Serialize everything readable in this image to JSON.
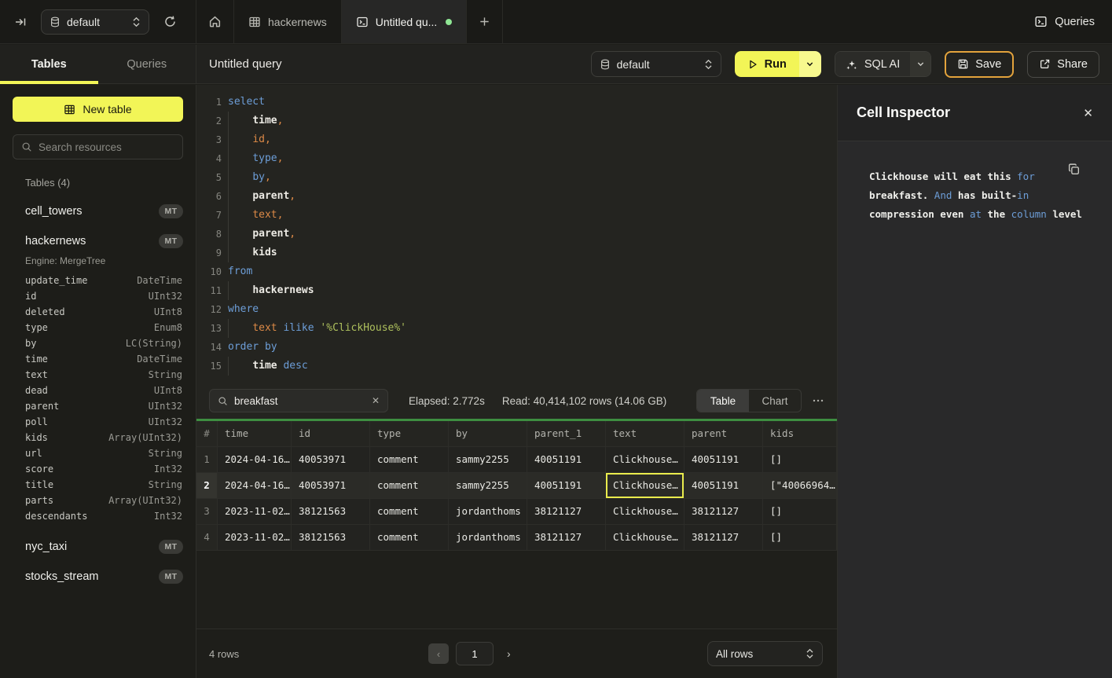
{
  "topbar": {
    "database_select": "default",
    "tabs": [
      {
        "label": "hackernews",
        "icon": "table"
      },
      {
        "label": "Untitled qu...",
        "icon": "terminal",
        "active": true
      }
    ],
    "queries_button": "Queries",
    "accent_yellow": "#f2f557",
    "dirty_dot_color": "#8fe694"
  },
  "sidebar": {
    "tabs": [
      {
        "label": "Tables",
        "active": true
      },
      {
        "label": "Queries",
        "active": false
      }
    ],
    "new_table_button": "New table",
    "search_placeholder": "Search resources",
    "section_label": "Tables (4)",
    "tables": [
      {
        "name": "cell_towers",
        "badge": "MT"
      },
      {
        "name": "hackernews",
        "badge": "MT"
      },
      {
        "name": "nyc_taxi",
        "badge": "MT"
      },
      {
        "name": "stocks_stream",
        "badge": "MT"
      }
    ],
    "expanded_table_engine": "Engine: MergeTree",
    "expanded_table_columns": [
      [
        "update_time",
        "DateTime"
      ],
      [
        "id",
        "UInt32"
      ],
      [
        "deleted",
        "UInt8"
      ],
      [
        "type",
        "Enum8"
      ],
      [
        "by",
        "LC(String)"
      ],
      [
        "time",
        "DateTime"
      ],
      [
        "text",
        "String"
      ],
      [
        "dead",
        "UInt8"
      ],
      [
        "parent",
        "UInt32"
      ],
      [
        "poll",
        "UInt32"
      ],
      [
        "kids",
        "Array(UInt32)"
      ],
      [
        "url",
        "String"
      ],
      [
        "score",
        "Int32"
      ],
      [
        "title",
        "String"
      ],
      [
        "parts",
        "Array(UInt32)"
      ],
      [
        "descendants",
        "Int32"
      ]
    ]
  },
  "toolbar": {
    "title": "Untitled query",
    "database_select": "default",
    "run_label": "Run",
    "sql_ai_label": "SQL AI",
    "save_label": "Save",
    "share_label": "Share",
    "save_border_color": "#e3a33c"
  },
  "editor": {
    "lines": [
      {
        "n": "1",
        "guide": false,
        "tokens": [
          [
            "select",
            "kw"
          ]
        ]
      },
      {
        "n": "2",
        "guide": true,
        "tokens": [
          [
            "    ",
            "pl"
          ],
          [
            "time",
            "id"
          ],
          [
            ",",
            "or"
          ]
        ]
      },
      {
        "n": "3",
        "guide": true,
        "tokens": [
          [
            "    ",
            "pl"
          ],
          [
            "id",
            "or"
          ],
          [
            ",",
            "or"
          ]
        ]
      },
      {
        "n": "4",
        "guide": true,
        "tokens": [
          [
            "    ",
            "pl"
          ],
          [
            "type",
            "kw"
          ],
          [
            ",",
            "or"
          ]
        ]
      },
      {
        "n": "5",
        "guide": true,
        "tokens": [
          [
            "    ",
            "pl"
          ],
          [
            "by",
            "kw"
          ],
          [
            ",",
            "or"
          ]
        ]
      },
      {
        "n": "6",
        "guide": true,
        "tokens": [
          [
            "    ",
            "pl"
          ],
          [
            "parent",
            "id"
          ],
          [
            ",",
            "or"
          ]
        ]
      },
      {
        "n": "7",
        "guide": true,
        "tokens": [
          [
            "    ",
            "pl"
          ],
          [
            "text",
            "or"
          ],
          [
            ",",
            "or"
          ]
        ]
      },
      {
        "n": "8",
        "guide": true,
        "tokens": [
          [
            "    ",
            "pl"
          ],
          [
            "parent",
            "id"
          ],
          [
            ",",
            "or"
          ]
        ]
      },
      {
        "n": "9",
        "guide": true,
        "tokens": [
          [
            "    ",
            "pl"
          ],
          [
            "kids",
            "id"
          ]
        ]
      },
      {
        "n": "10",
        "guide": false,
        "tokens": [
          [
            "from",
            "kw"
          ]
        ]
      },
      {
        "n": "11",
        "guide": true,
        "tokens": [
          [
            "    ",
            "pl"
          ],
          [
            "hackernews",
            "id"
          ]
        ]
      },
      {
        "n": "12",
        "guide": false,
        "tokens": [
          [
            "where",
            "kw"
          ]
        ]
      },
      {
        "n": "13",
        "guide": true,
        "tokens": [
          [
            "    ",
            "pl"
          ],
          [
            "text",
            "or"
          ],
          [
            " ",
            "pl"
          ],
          [
            "ilike",
            "kw"
          ],
          [
            " ",
            "pl"
          ],
          [
            "'%ClickHouse%'",
            "st"
          ]
        ]
      },
      {
        "n": "14",
        "guide": false,
        "tokens": [
          [
            "order by",
            "kw"
          ]
        ]
      },
      {
        "n": "15",
        "guide": true,
        "tokens": [
          [
            "    ",
            "pl"
          ],
          [
            "time",
            "id"
          ],
          [
            " ",
            "pl"
          ],
          [
            "desc",
            "kw"
          ]
        ]
      }
    ]
  },
  "results": {
    "search_value": "breakfast",
    "elapsed": "Elapsed: 2.772s",
    "read": "Read: 40,414,102 rows (14.06 GB)",
    "view_toggle": [
      {
        "label": "Table",
        "active": true
      },
      {
        "label": "Chart",
        "active": false
      }
    ],
    "more_label": "...",
    "table": {
      "columns": [
        "#",
        "time",
        "id",
        "type",
        "by",
        "parent_1",
        "text",
        "parent",
        "kids"
      ],
      "rows": [
        [
          "2024-04-16…",
          "40053971",
          "comment",
          "sammy2255",
          "40051191",
          "Clickhouse…",
          "40051191",
          "[]"
        ],
        [
          "2024-04-16…",
          "40053971",
          "comment",
          "sammy2255",
          "40051191",
          "Clickhouse…",
          "40051191",
          "[\"40066964…"
        ],
        [
          "2023-11-02…",
          "38121563",
          "comment",
          "jordanthoms",
          "38121127",
          "Clickhouse…",
          "38121127",
          "[]"
        ],
        [
          "2023-11-02…",
          "38121563",
          "comment",
          "jordanthoms",
          "38121127",
          "Clickhouse…",
          "38121127",
          "[]"
        ]
      ],
      "selected_cell": {
        "row": 1,
        "col": 5
      },
      "highlighted_row": 1,
      "header_accent_color": "#3e8e41",
      "selection_color": "#eaec4d"
    },
    "footer": {
      "rows_label": "4 rows",
      "page": "1",
      "prev": "‹",
      "next": "›",
      "page_size": "All rows"
    }
  },
  "inspector": {
    "title": "Cell Inspector",
    "close_label": "✕",
    "lines": [
      [
        [
          "Clickhouse will eat this ",
          "t"
        ],
        [
          "for",
          "k"
        ]
      ],
      [
        [
          "breakfast. ",
          "t"
        ],
        [
          "And",
          "k"
        ],
        [
          " has built-",
          "t"
        ],
        [
          "in",
          "k"
        ]
      ],
      [
        [
          "compression even ",
          "t"
        ],
        [
          "at",
          "k"
        ],
        [
          " the ",
          "t"
        ],
        [
          "column",
          "k"
        ],
        [
          " level",
          "t"
        ]
      ]
    ],
    "keyword_color": "#6d9ed8"
  }
}
